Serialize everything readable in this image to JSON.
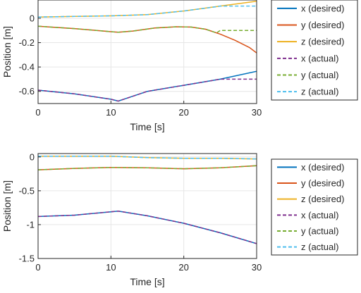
{
  "chart_data": [
    {
      "type": "line",
      "xlabel": "Time [s]",
      "ylabel": "Position [m]",
      "xlim": [
        0,
        30
      ],
      "ylim": [
        -0.7,
        0.15
      ],
      "xticks": [
        0,
        10,
        20,
        30
      ],
      "yticks": [
        -0.6,
        -0.4,
        -0.2,
        0
      ],
      "xtick_labels": [
        "0",
        "10",
        "20",
        "30"
      ],
      "ytick_labels": [
        "-0.6",
        "-0.4",
        "-0.2",
        "0"
      ],
      "grid": true,
      "legend_position": "outside right",
      "series": [
        {
          "name": "x (desired)",
          "style": "solid",
          "color": "#0072BD",
          "x": [
            0,
            5,
            10,
            11,
            12,
            15,
            20,
            25,
            30
          ],
          "y": [
            -0.59,
            -0.62,
            -0.665,
            -0.68,
            -0.66,
            -0.6,
            -0.55,
            -0.5,
            -0.435
          ]
        },
        {
          "name": "y (desired)",
          "style": "solid",
          "color": "#D95319",
          "x": [
            0,
            5,
            10,
            11,
            13,
            16,
            19,
            21,
            23,
            25,
            27,
            29,
            30
          ],
          "y": [
            -0.065,
            -0.085,
            -0.11,
            -0.115,
            -0.105,
            -0.08,
            -0.07,
            -0.072,
            -0.09,
            -0.13,
            -0.18,
            -0.24,
            -0.285
          ]
        },
        {
          "name": "z (desired)",
          "style": "solid",
          "color": "#EDB120",
          "x": [
            0,
            5,
            10,
            15,
            20,
            25,
            30
          ],
          "y": [
            0.01,
            0.015,
            0.02,
            0.03,
            0.06,
            0.1,
            0.14
          ]
        },
        {
          "name": "x (actual)",
          "style": "dashed",
          "color": "#7E2F8E",
          "x": [
            0,
            5,
            10,
            11,
            12,
            15,
            20,
            24.5,
            25,
            30
          ],
          "y": [
            -0.59,
            -0.62,
            -0.665,
            -0.68,
            -0.66,
            -0.6,
            -0.55,
            -0.505,
            -0.5,
            -0.5
          ]
        },
        {
          "name": "y (actual)",
          "style": "dashed",
          "color": "#77AC30",
          "x": [
            0,
            5,
            10,
            11,
            13,
            16,
            19,
            21,
            23,
            24.5,
            25,
            30
          ],
          "y": [
            -0.065,
            -0.085,
            -0.11,
            -0.115,
            -0.105,
            -0.08,
            -0.07,
            -0.072,
            -0.09,
            -0.12,
            -0.1,
            -0.1
          ]
        },
        {
          "name": "z (actual)",
          "style": "dashed",
          "color": "#4DBEEE",
          "x": [
            0,
            5,
            10,
            15,
            20,
            24.5,
            25,
            30
          ],
          "y": [
            0.01,
            0.015,
            0.02,
            0.03,
            0.06,
            0.095,
            0.1,
            0.1
          ]
        }
      ]
    },
    {
      "type": "line",
      "xlabel": "Time [s]",
      "ylabel": "Position [m]",
      "xlim": [
        0,
        30
      ],
      "ylim": [
        -1.5,
        0.05
      ],
      "xticks": [
        0,
        10,
        20,
        30
      ],
      "yticks": [
        -1.5,
        -1,
        -0.5,
        0
      ],
      "xtick_labels": [
        "0",
        "10",
        "20",
        "30"
      ],
      "ytick_labels": [
        "-1.5",
        "-1",
        "-0.5",
        "0"
      ],
      "grid": true,
      "legend_position": "outside right",
      "series": [
        {
          "name": "x (desired)",
          "style": "solid",
          "color": "#0072BD",
          "x": [
            0,
            5,
            10,
            11,
            15,
            20,
            25,
            30
          ],
          "y": [
            -0.88,
            -0.86,
            -0.81,
            -0.8,
            -0.87,
            -0.98,
            -1.12,
            -1.28
          ]
        },
        {
          "name": "y (desired)",
          "style": "solid",
          "color": "#D95319",
          "x": [
            0,
            5,
            10,
            15,
            20,
            25,
            30
          ],
          "y": [
            -0.19,
            -0.17,
            -0.155,
            -0.16,
            -0.175,
            -0.16,
            -0.13
          ]
        },
        {
          "name": "z (desired)",
          "style": "solid",
          "color": "#EDB120",
          "x": [
            0,
            5,
            10,
            15,
            20,
            25,
            30
          ],
          "y": [
            0.01,
            0.01,
            0.01,
            -0.01,
            -0.02,
            -0.02,
            -0.03
          ]
        },
        {
          "name": "x (actual)",
          "style": "dashed",
          "color": "#7E2F8E",
          "x": [
            0,
            5,
            10,
            11,
            15,
            20,
            25,
            30
          ],
          "y": [
            -0.88,
            -0.86,
            -0.81,
            -0.8,
            -0.87,
            -0.98,
            -1.12,
            -1.28
          ]
        },
        {
          "name": "y (actual)",
          "style": "dashed",
          "color": "#77AC30",
          "x": [
            0,
            5,
            10,
            15,
            20,
            25,
            30
          ],
          "y": [
            -0.19,
            -0.17,
            -0.155,
            -0.16,
            -0.175,
            -0.16,
            -0.13
          ]
        },
        {
          "name": "z (actual)",
          "style": "dashed",
          "color": "#4DBEEE",
          "x": [
            0,
            5,
            10,
            15,
            20,
            25,
            30
          ],
          "y": [
            0.01,
            0.01,
            0.01,
            -0.01,
            -0.02,
            -0.02,
            -0.03
          ]
        }
      ]
    }
  ]
}
